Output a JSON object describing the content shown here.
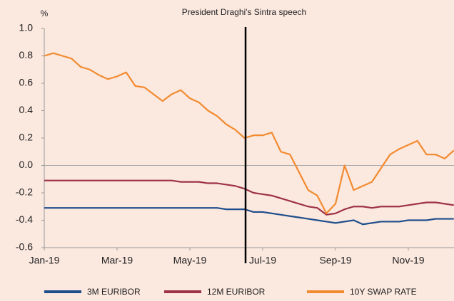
{
  "chart_data": {
    "type": "line",
    "annotation": "President Draghi's Sintra speech",
    "ylabel": "%",
    "categories": [
      "Jan-19",
      null,
      null,
      null,
      null,
      null,
      null,
      null,
      "Mar-19",
      null,
      null,
      null,
      null,
      null,
      null,
      null,
      "May-19",
      null,
      null,
      null,
      null,
      null,
      null,
      null,
      "Jul-19",
      null,
      null,
      null,
      null,
      null,
      null,
      null,
      "Sep-19",
      null,
      null,
      null,
      null,
      null,
      null,
      null,
      "Nov-19",
      null,
      null,
      null,
      null,
      null
    ],
    "series": [
      {
        "name": "3M EURIBOR",
        "color": "#1f4e8c",
        "values": [
          -0.31,
          -0.31,
          -0.31,
          -0.31,
          -0.31,
          -0.31,
          -0.31,
          -0.31,
          -0.31,
          -0.31,
          -0.31,
          -0.31,
          -0.31,
          -0.31,
          -0.31,
          -0.31,
          -0.31,
          -0.31,
          -0.31,
          -0.31,
          -0.32,
          -0.32,
          -0.32,
          -0.34,
          -0.34,
          -0.35,
          -0.36,
          -0.37,
          -0.38,
          -0.39,
          -0.4,
          -0.41,
          -0.42,
          -0.41,
          -0.4,
          -0.43,
          -0.42,
          -0.41,
          -0.41,
          -0.41,
          -0.4,
          -0.4,
          -0.4,
          -0.39,
          -0.39,
          -0.39
        ]
      },
      {
        "name": "12M EURIBOR",
        "color": "#9e3248",
        "values": [
          -0.11,
          -0.11,
          -0.11,
          -0.11,
          -0.11,
          -0.11,
          -0.11,
          -0.11,
          -0.11,
          -0.11,
          -0.11,
          -0.11,
          -0.11,
          -0.11,
          -0.11,
          -0.12,
          -0.12,
          -0.12,
          -0.13,
          -0.13,
          -0.14,
          -0.15,
          -0.17,
          -0.2,
          -0.21,
          -0.22,
          -0.24,
          -0.26,
          -0.28,
          -0.3,
          -0.31,
          -0.36,
          -0.35,
          -0.32,
          -0.3,
          -0.3,
          -0.31,
          -0.3,
          -0.3,
          -0.3,
          -0.29,
          -0.28,
          -0.27,
          -0.27,
          -0.28,
          -0.29
        ]
      },
      {
        "name": "10Y SWAP RATE",
        "color": "#f28b30",
        "values": [
          0.8,
          0.82,
          0.8,
          0.78,
          0.72,
          0.7,
          0.66,
          0.63,
          0.65,
          0.68,
          0.58,
          0.57,
          0.52,
          0.47,
          0.52,
          0.55,
          0.49,
          0.46,
          0.4,
          0.36,
          0.3,
          0.26,
          0.2,
          0.22,
          0.22,
          0.24,
          0.1,
          0.08,
          -0.05,
          -0.18,
          -0.22,
          -0.35,
          -0.28,
          0.0,
          -0.18,
          -0.15,
          -0.12,
          -0.02,
          0.08,
          0.12,
          0.15,
          0.18,
          0.08,
          0.08,
          0.05,
          0.11
        ]
      }
    ],
    "ylim": [
      -0.6,
      1.0
    ],
    "yticks": [
      {
        "value": 1.0,
        "label": "1.0"
      },
      0.8,
      0.6,
      0.4,
      0.2,
      {
        "value": 0,
        "label": "0.0"
      },
      -0.2,
      -0.4,
      -0.6
    ],
    "legend": "bottom"
  }
}
